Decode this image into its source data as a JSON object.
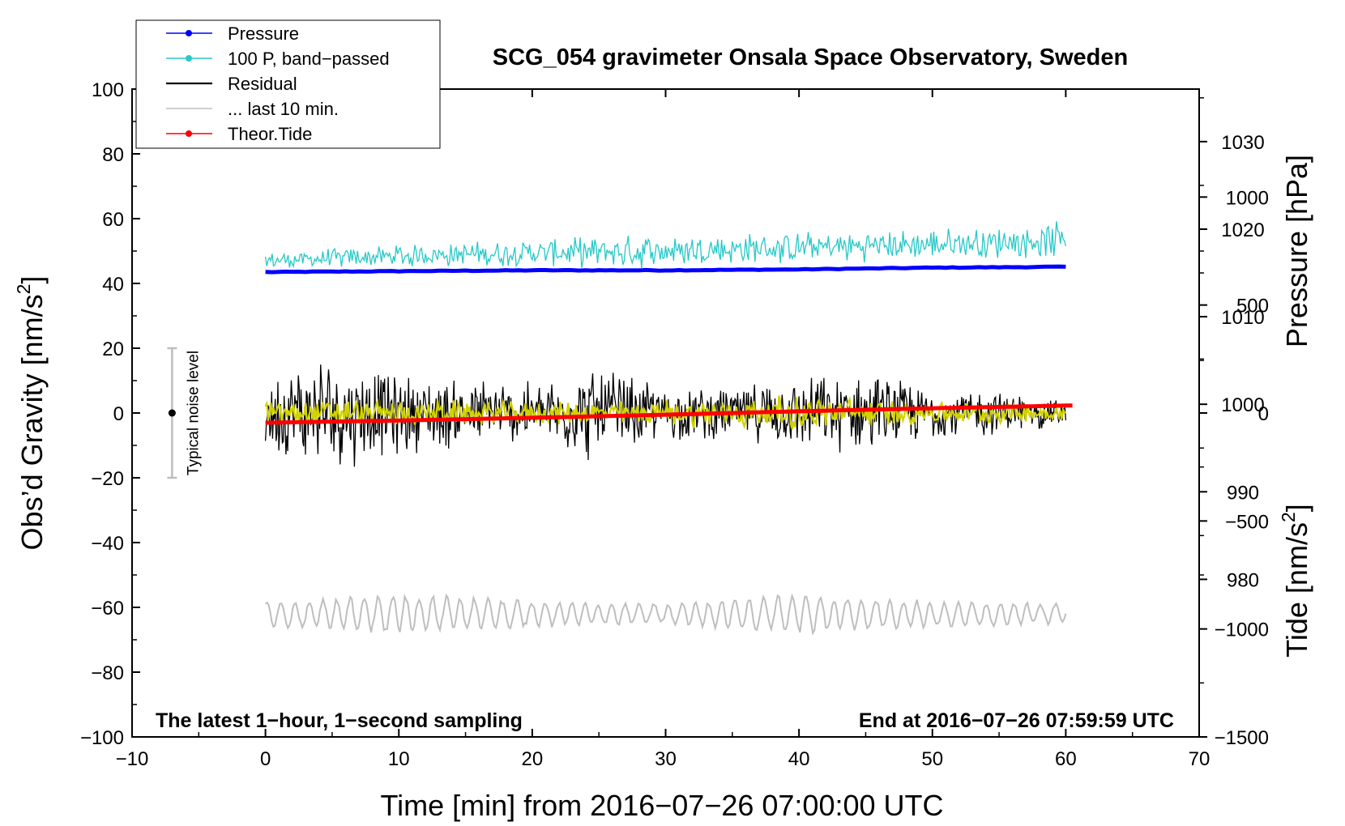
{
  "chart_data": {
    "type": "line",
    "title": "SCG_054 gravimeter Onsala Space Observatory, Sweden",
    "xlabel": "Time [min] from 2016−07−26 07:00:00 UTC",
    "ylabel": "Obs'd Gravity [nm/s²]",
    "ylabel_parts": {
      "text": "Obs’d Gravity [nm/s",
      "sup": "2",
      "close": "]"
    },
    "xlim": [
      -10,
      70
    ],
    "ylim": [
      -100,
      100
    ],
    "x_ticks": [
      "−10",
      "0",
      "10",
      "20",
      "30",
      "40",
      "50",
      "60",
      "70"
    ],
    "y_ticks": [
      "−100",
      "−80",
      "−60",
      "−40",
      "−20",
      "0",
      "20",
      "40",
      "60",
      "80",
      "100"
    ],
    "pressure_axis": {
      "label": "Pressure [hPa]",
      "range": [
        962,
        1036
      ],
      "ticks": [
        "980",
        "990",
        "1000",
        "1010",
        "1020",
        "1030"
      ]
    },
    "tide_axis": {
      "label_parts": {
        "text": "Tide [nm/s",
        "sup": "2",
        "close": "]"
      },
      "range": [
        -1500,
        1500
      ],
      "ticks": [
        "−1500",
        "−1000",
        "−500",
        "0",
        "500",
        "1000"
      ]
    },
    "notes": {
      "left": "The latest 1−hour, 1−second sampling",
      "right": "End at 2016−07−26 07:59:59 UTC"
    },
    "noise_indicator": {
      "label": "Typical noise level",
      "x": -7,
      "center": 0,
      "half_range": 20
    },
    "legend": [
      {
        "name": "Pressure",
        "color": "#0000ff",
        "marker": true
      },
      {
        "name": "100 P, band−passed",
        "color": "#28c8c8",
        "marker": true
      },
      {
        "name": "Residual",
        "color": "#000000",
        "marker": false
      },
      {
        "name": "... last 10 min.",
        "color": "#bebebe",
        "marker": false
      },
      {
        "name": "Theor.Tide",
        "color": "#ff0000",
        "marker": true
      }
    ],
    "series": [
      {
        "name": "Pressure",
        "axis": "pressure_hPa",
        "color": "#0000ff",
        "style": "thick",
        "x": [
          0,
          10,
          20,
          30,
          40,
          50,
          60
        ],
        "y": [
          1015.1,
          1015.2,
          1015.3,
          1015.3,
          1015.4,
          1015.6,
          1015.7
        ]
      },
      {
        "name": "100 P, band−passed",
        "axis": "gravity",
        "color": "#28c8c8",
        "style": "noisy",
        "x": [
          0,
          10,
          20,
          30,
          40,
          50,
          60
        ],
        "y": [
          47,
          48.5,
          49.5,
          50,
          51,
          52,
          53.5
        ],
        "noise_amplitude": [
          2,
          2.5,
          3,
          4,
          3.5,
          3.5,
          4
        ]
      },
      {
        "name": "Residual",
        "axis": "gravity",
        "color": "#000000",
        "style": "noisy",
        "x": [
          0,
          5,
          10,
          15,
          20,
          25,
          30,
          35,
          40,
          45,
          50,
          55,
          60
        ],
        "y": [
          0,
          0,
          0,
          0,
          0,
          0,
          0,
          0,
          0,
          0,
          0,
          0,
          0
        ],
        "noise_amplitude": [
          9,
          13,
          9,
          8,
          7,
          11,
          6,
          6,
          8,
          9,
          6,
          5,
          3
        ]
      },
      {
        "name": "Residual (smoothed)",
        "axis": "gravity",
        "color": "#d2d200",
        "style": "noisy",
        "x": [
          0,
          10,
          20,
          30,
          40,
          50,
          60
        ],
        "y": [
          0,
          0,
          0,
          0,
          0,
          0,
          0
        ],
        "noise_amplitude": [
          3,
          3,
          2.5,
          3,
          4,
          2.5,
          2
        ]
      },
      {
        "name": "... last 10 min.",
        "axis": "gravity",
        "color": "#bebebe",
        "style": "wave",
        "x": [
          0,
          10,
          20,
          30,
          40,
          50,
          60
        ],
        "y": [
          -62,
          -62,
          -62,
          -62,
          -62,
          -62,
          -62
        ],
        "noise_amplitude": [
          4,
          6,
          4,
          3,
          6,
          4,
          3
        ]
      },
      {
        "name": "Theor.Tide",
        "axis": "tide_nm_s2",
        "color": "#ff0000",
        "style": "thick",
        "x": [
          0,
          10,
          20,
          30,
          40,
          50,
          60.5
        ],
        "y": [
          -45,
          -35,
          -22,
          -8,
          8,
          22,
          35
        ]
      }
    ]
  }
}
